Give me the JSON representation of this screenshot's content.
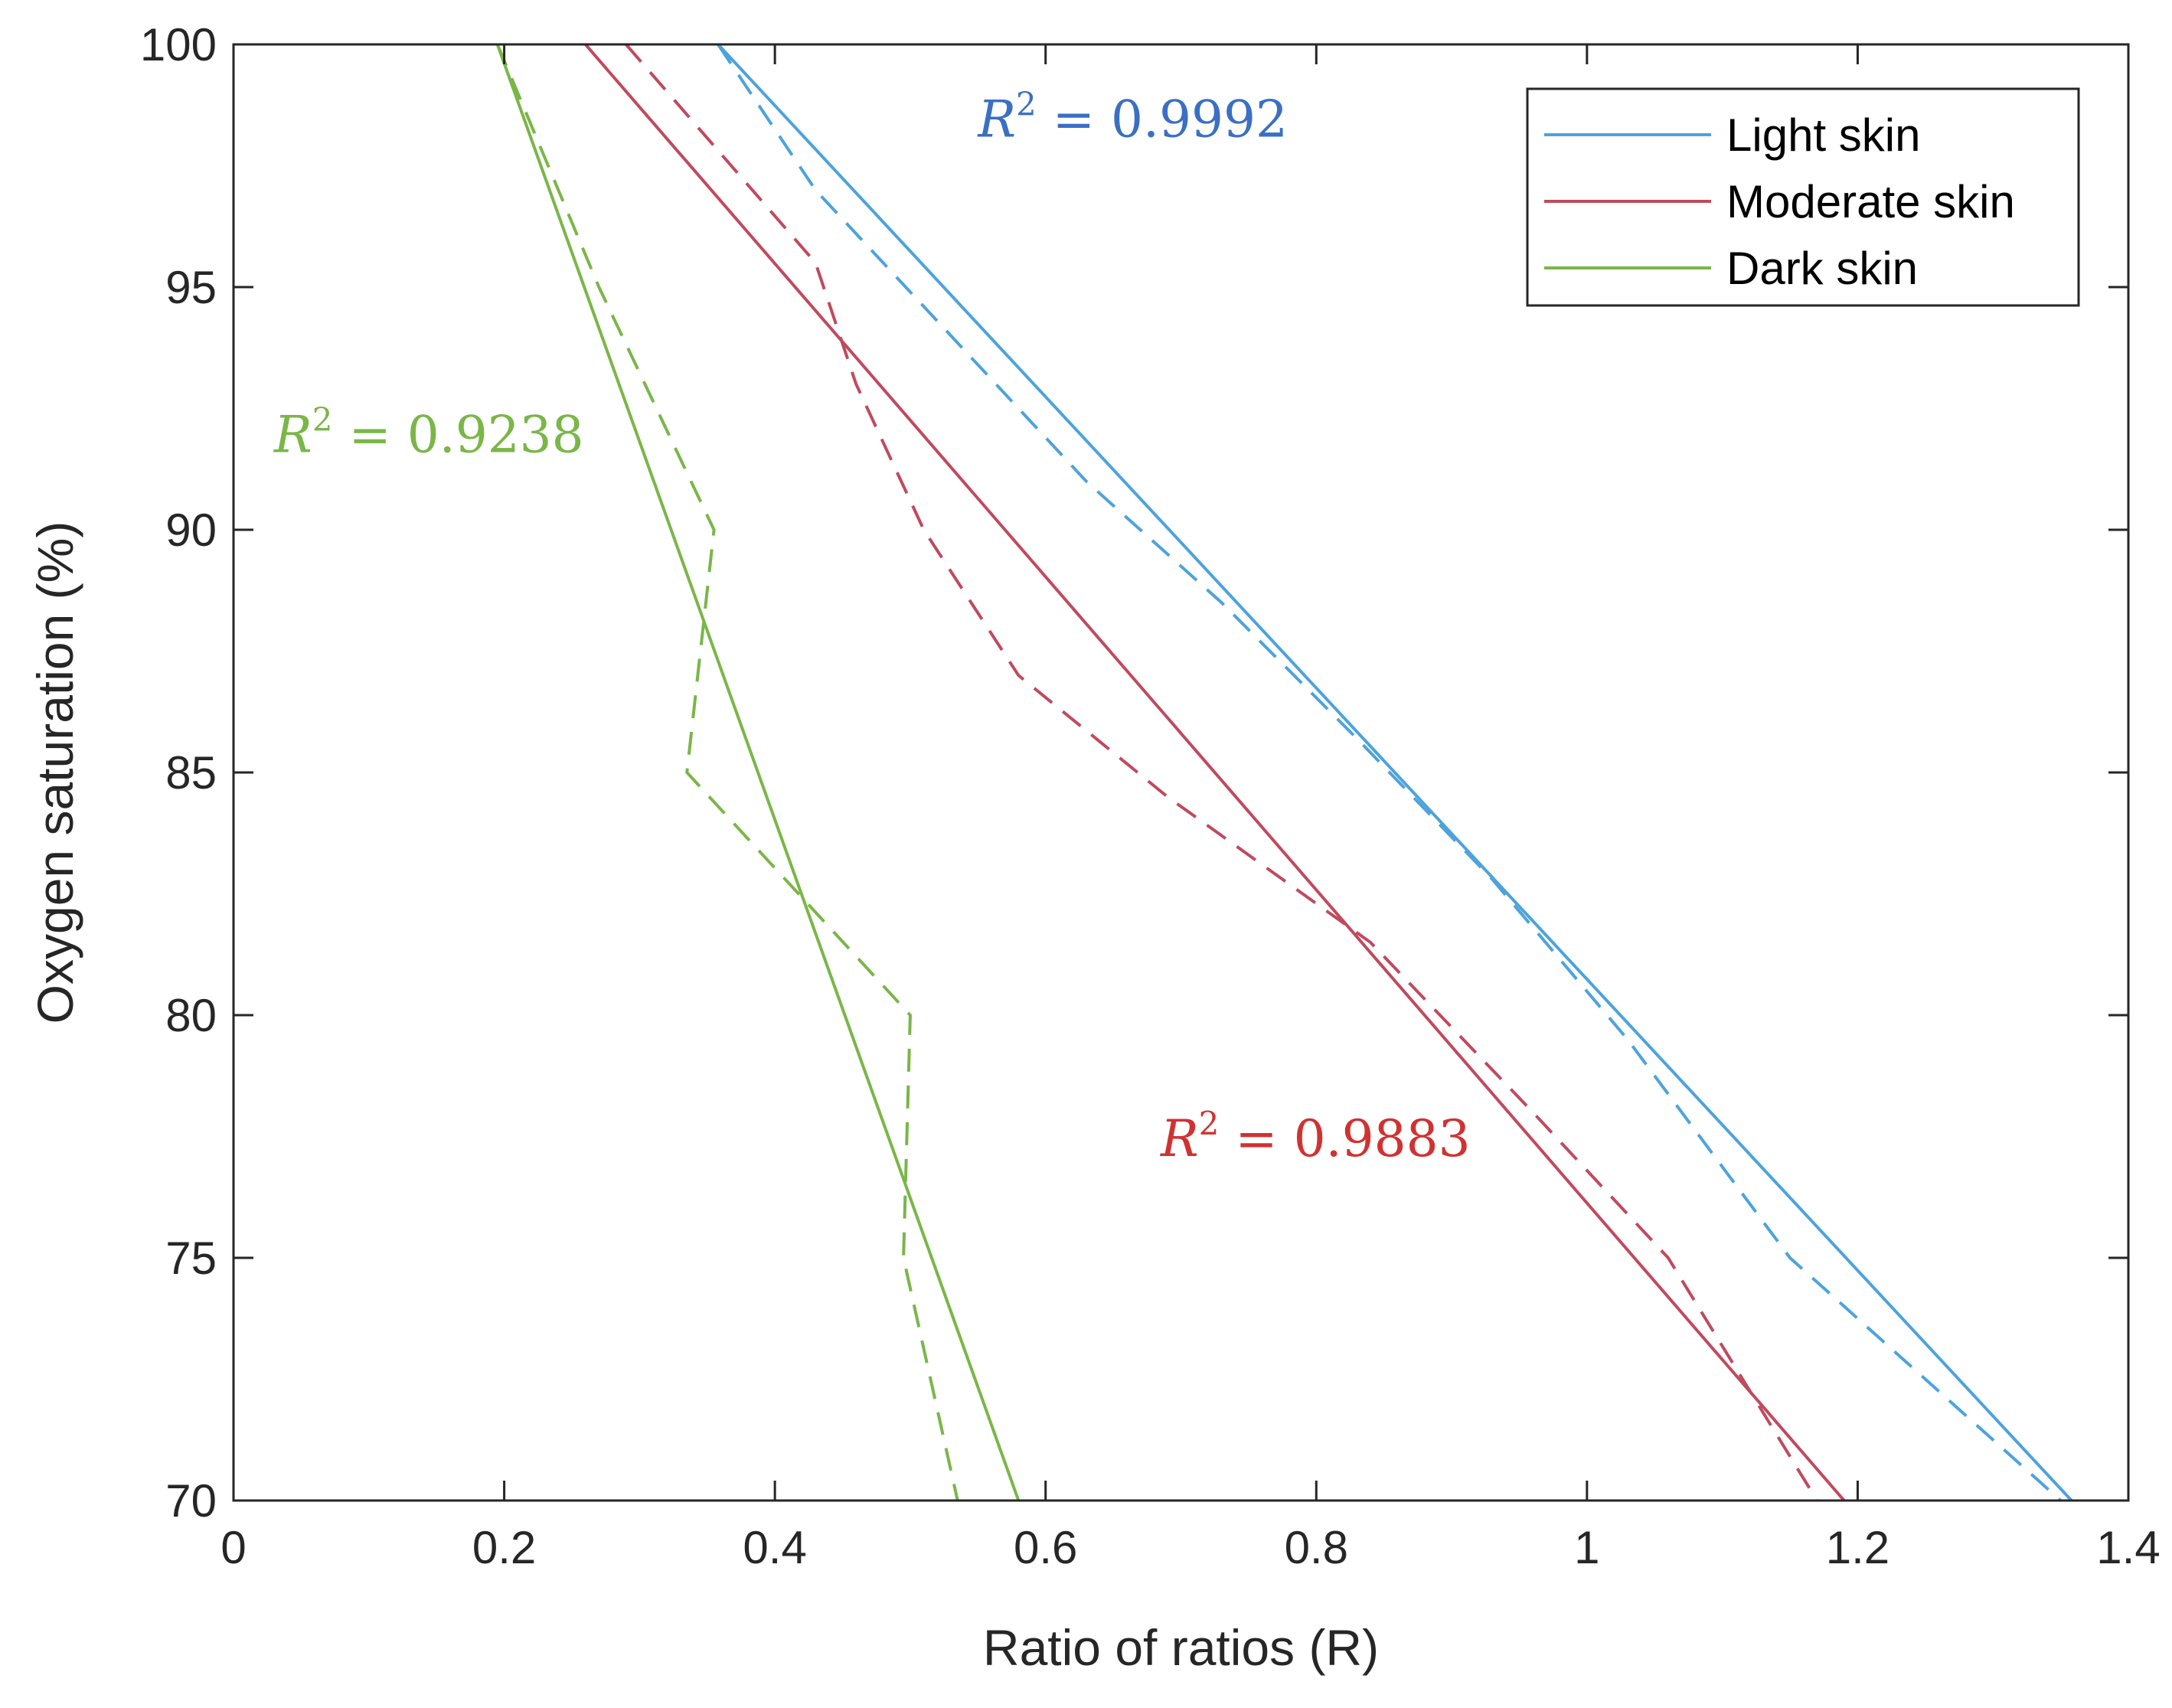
{
  "chart_data": {
    "type": "line",
    "xlabel": "Ratio of ratios (R)",
    "ylabel": "Oxygen saturation (%)",
    "xlim": [
      0,
      1.4
    ],
    "ylim": [
      70,
      100
    ],
    "xticks": [
      0,
      0.2,
      0.4,
      0.6,
      0.8,
      1,
      1.2,
      1.4
    ],
    "xtick_labels": [
      "0",
      "0.2",
      "0.4",
      "0.6",
      "0.8",
      "1",
      "1.2",
      "1.4"
    ],
    "yticks": [
      70,
      75,
      80,
      85,
      90,
      95,
      100
    ],
    "ytick_labels": [
      "70",
      "75",
      "80",
      "85",
      "90",
      "95",
      "100"
    ],
    "legend_position": "top-right",
    "series": [
      {
        "name": "Light skin",
        "color": "#4da3dc",
        "fit": {
          "x": [
            0.358,
            1.358
          ],
          "y": [
            100,
            70
          ]
        },
        "measured": {
          "x": [
            0.358,
            0.43,
            0.53,
            0.63,
            0.73,
            0.83,
            0.93,
            1.03,
            1.15,
            1.35
          ],
          "y": [
            100,
            97,
            94,
            91,
            88.5,
            85.7,
            82.8,
            79.5,
            75,
            70
          ]
        },
        "r2_value": "0.9992",
        "r2_color": "#3a6fc4"
      },
      {
        "name": "Moderate skin",
        "color": "#c04a5e",
        "fit": {
          "x": [
            0.26,
            1.19
          ],
          "y": [
            100,
            70
          ]
        },
        "measured": {
          "x": [
            0.29,
            0.43,
            0.46,
            0.51,
            0.58,
            0.69,
            0.84,
            0.96,
            1.06,
            1.17
          ],
          "y": [
            100,
            95.5,
            93,
            90,
            87,
            84.5,
            81.5,
            78,
            75,
            70
          ]
        },
        "r2_value": "0.9883",
        "r2_color": "#d03232"
      },
      {
        "name": "Dark skin",
        "color": "#7ab648",
        "fit": {
          "x": [
            0.195,
            0.58
          ],
          "y": [
            100,
            70
          ]
        },
        "measured": {
          "x": [
            0.195,
            0.27,
            0.355,
            0.335,
            0.5,
            0.495,
            0.535
          ],
          "y": [
            100,
            95,
            90,
            85,
            80,
            75,
            70
          ]
        },
        "r2_value": "0.9238",
        "r2_color": "#7ab648"
      }
    ],
    "annotations": [
      {
        "series": "Light skin",
        "x": 0.55,
        "y": 98.1
      },
      {
        "series": "Moderate skin",
        "x": 0.685,
        "y": 77.1
      },
      {
        "series": "Dark skin",
        "x": 0.03,
        "y": 91.6
      }
    ],
    "r2_prefix": "R",
    "r2_power": "2",
    "r2_equals": " = "
  }
}
